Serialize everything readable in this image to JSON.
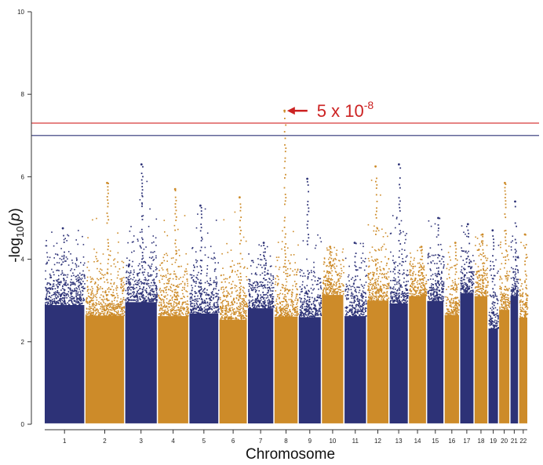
{
  "chart_data": {
    "type": "scatter",
    "subtype": "manhattan",
    "xlabel": "Chromosome",
    "ylabel": {
      "prefix": "-log",
      "sub": "10",
      "suffix": "(",
      "var": "p",
      "close": ")"
    },
    "ylim": [
      0,
      10
    ],
    "yticks": [
      0,
      2,
      4,
      6,
      8,
      10
    ],
    "ytick_labels": [
      "0",
      "2",
      "4",
      "6",
      "8",
      "10"
    ],
    "colors": {
      "odd": "#2d3277",
      "even": "#cd8b29",
      "genome_wide_line": "#d83a3a",
      "suggestive_line": "#2d3277",
      "annotation": "#cc2222"
    },
    "thresholds": [
      {
        "name": "genome-wide",
        "neglog10p": 7.3,
        "color": "#d83a3a"
      },
      {
        "name": "suggestive",
        "neglog10p": 7.0,
        "color": "#2d3277"
      }
    ],
    "annotation": {
      "text": "5 x 10",
      "superscript": "-8",
      "target_chromosome": "8",
      "target_neglog10p": 7.6
    },
    "chromosomes": [
      {
        "label": "1",
        "peak": 4.75
      },
      {
        "label": "2",
        "peak": 5.85
      },
      {
        "label": "3",
        "peak": 6.3
      },
      {
        "label": "4",
        "peak": 5.7
      },
      {
        "label": "5",
        "peak": 5.3
      },
      {
        "label": "6",
        "peak": 5.5
      },
      {
        "label": "7",
        "peak": 4.4
      },
      {
        "label": "8",
        "peak": 7.6
      },
      {
        "label": "9",
        "peak": 5.95
      },
      {
        "label": "10",
        "peak": 4.3
      },
      {
        "label": "11",
        "peak": 4.4
      },
      {
        "label": "12",
        "peak": 6.25
      },
      {
        "label": "13",
        "peak": 6.3
      },
      {
        "label": "14",
        "peak": 4.3
      },
      {
        "label": "15",
        "peak": 5.0
      },
      {
        "label": "16",
        "peak": 4.4
      },
      {
        "label": "17",
        "peak": 4.85
      },
      {
        "label": "18",
        "peak": 4.6
      },
      {
        "label": "19",
        "peak": 4.7
      },
      {
        "label": "20",
        "peak": 5.85
      },
      {
        "label": "21",
        "peak": 5.4
      },
      {
        "label": "22",
        "peak": 4.6
      }
    ]
  }
}
